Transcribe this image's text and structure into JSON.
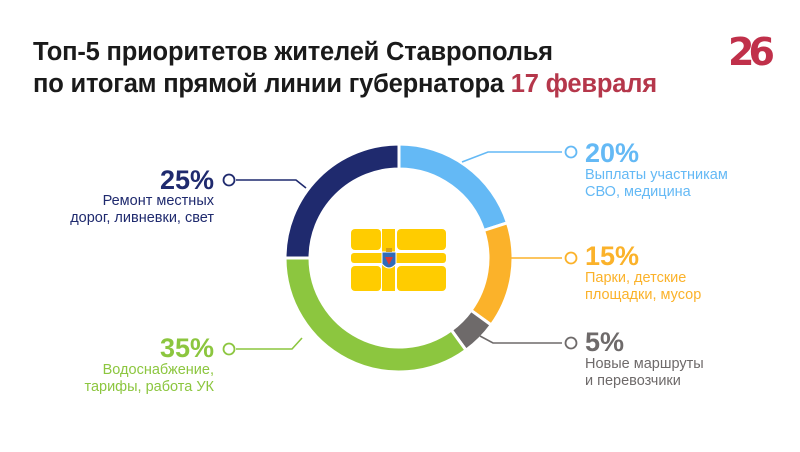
{
  "header": {
    "title_line1": "Топ-5 приоритетов жителей Ставрополья",
    "title_line2_prefix": "по итогам прямой линии губернатора ",
    "title_date": "17 февраля"
  },
  "logo_text": "26",
  "colors": {
    "navy": "#1f2a6e",
    "light_blue": "#64b9f5",
    "orange": "#fbb22a",
    "gray": "#6e6a6a",
    "green": "#8cc63f",
    "accent_red": "#b5374b",
    "flag_yellow": "#ffcc00"
  },
  "emblem": "stavropol-flag-emblem",
  "chart_data": {
    "type": "pie",
    "variant": "donut",
    "categories": [
      "Выплаты участникам СВО, медицина",
      "Парки, детские площадки, мусор",
      "Новые маршруты и перевозчики",
      "Водоснабжение, тарифы, работа УК",
      "Ремонт местных дорог, ливневки, свет"
    ],
    "values": [
      20,
      15,
      5,
      35,
      25
    ],
    "labels": [
      {
        "pct": "20%",
        "line1": "Выплаты участникам",
        "line2": "СВО, медицина"
      },
      {
        "pct": "15%",
        "line1": "Парки, детские",
        "line2": "площадки, мусор"
      },
      {
        "pct": "5%",
        "line1": "Новые маршруты",
        "line2": "и перевозчики"
      },
      {
        "pct": "35%",
        "line1": "Водоснабжение,",
        "line2": "тарифы, работа УК"
      },
      {
        "pct": "25%",
        "line1": "Ремонт местных",
        "line2": "дорог, ливневки, свет"
      }
    ],
    "slice_colors": [
      "#64b9f5",
      "#fbb22a",
      "#6e6a6a",
      "#8cc63f",
      "#1f2a6e"
    ]
  }
}
